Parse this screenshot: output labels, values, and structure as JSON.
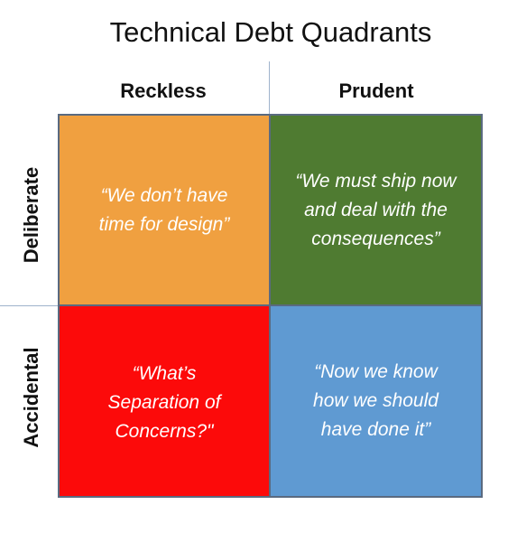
{
  "title": "Technical Debt Quadrants",
  "columns": {
    "left": "Reckless",
    "right": "Prudent"
  },
  "rows": {
    "top": "Deliberate",
    "bottom": "Accidental"
  },
  "quadrants": {
    "deliberate_reckless": {
      "text": "“We don’t have\ntime for design”",
      "color": "#f0a040"
    },
    "deliberate_prudent": {
      "text": "“We must ship now\nand deal with the\nconsequences”",
      "color": "#4f7b31"
    },
    "accidental_reckless": {
      "text": "“What’s\nSeparation of\nConcerns?\"",
      "color": "#fc0a0a"
    },
    "accidental_prudent": {
      "text": "“Now we know\nhow we should\nhave done it”",
      "color": "#5f9ad2"
    }
  }
}
